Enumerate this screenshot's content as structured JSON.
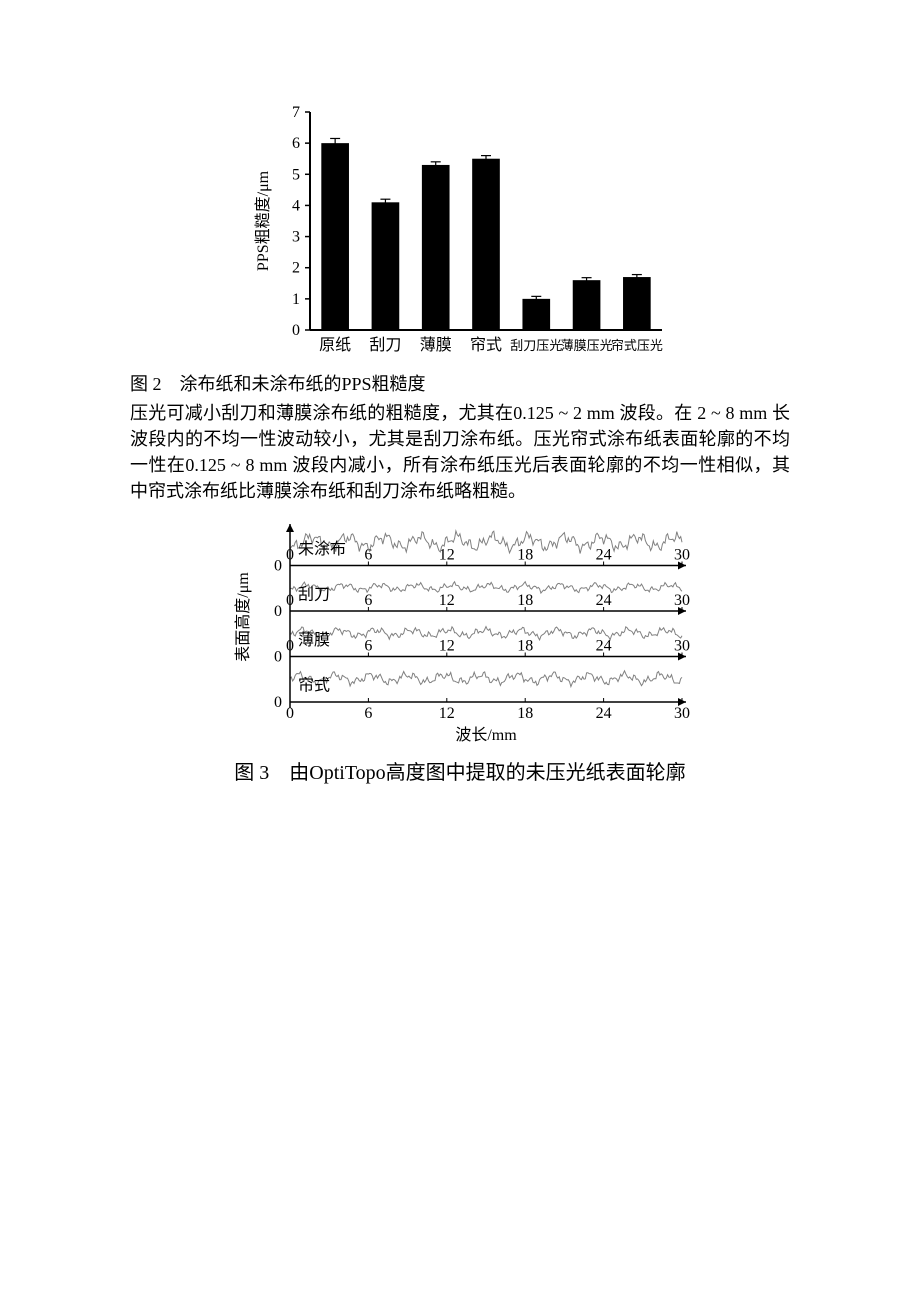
{
  "figure2": {
    "type": "bar",
    "caption": "图 2　涂布纸和未涂布纸的PPS粗糙度",
    "ylabel": "PPS粗糙度/μm",
    "categories": [
      "原纸",
      "刮刀",
      "薄膜",
      "帘式",
      "刮刀压光",
      "薄膜压光",
      "帘式压光"
    ],
    "values": [
      6.0,
      4.1,
      5.3,
      5.5,
      1.0,
      1.6,
      1.7
    ],
    "errors": [
      0.15,
      0.1,
      0.1,
      0.1,
      0.08,
      0.08,
      0.08
    ],
    "ylim": [
      0,
      7
    ],
    "ytick_step": 1,
    "bar_color": "#000000",
    "axis_color": "#000000",
    "background_color": "#ffffff",
    "bar_width_ratio": 0.55,
    "ylabel_fontsize": 16,
    "tick_fontsize": 16,
    "catlabel_fontsize": 16
  },
  "paragraph": {
    "text": "压光可减小刮刀和薄膜涂布纸的粗糙度，尤其在0.125 ~ 2 mm 波段。在 2 ~ 8 mm 长波段内的不均一性波动较小，尤其是刮刀涂布纸。压光帘式涂布纸表面轮廓的不均一性在0.125 ~ 8 mm 波段内减小，所有涂布纸压光后表面轮廓的不均一性相似，其中帘式涂布纸比薄膜涂布纸和刮刀涂布纸略粗糙。"
  },
  "figure3": {
    "type": "line",
    "caption": "图 3　由OptiTopo高度图中提取的未压光纸表面轮廓",
    "ylabel": "表面高度/μm",
    "xlabel": "波长/mm",
    "xlim": [
      0,
      30
    ],
    "xtick_step": 6,
    "series_labels": [
      "未涂布",
      "刮刀",
      "薄膜",
      "帘式"
    ],
    "colors": {
      "axis": "#000000",
      "trace": "#808080",
      "background": "#ffffff"
    },
    "fontsize": 16,
    "amplitudes": [
      1.1,
      0.55,
      0.65,
      0.75
    ],
    "trace_line_width": 1.0
  }
}
